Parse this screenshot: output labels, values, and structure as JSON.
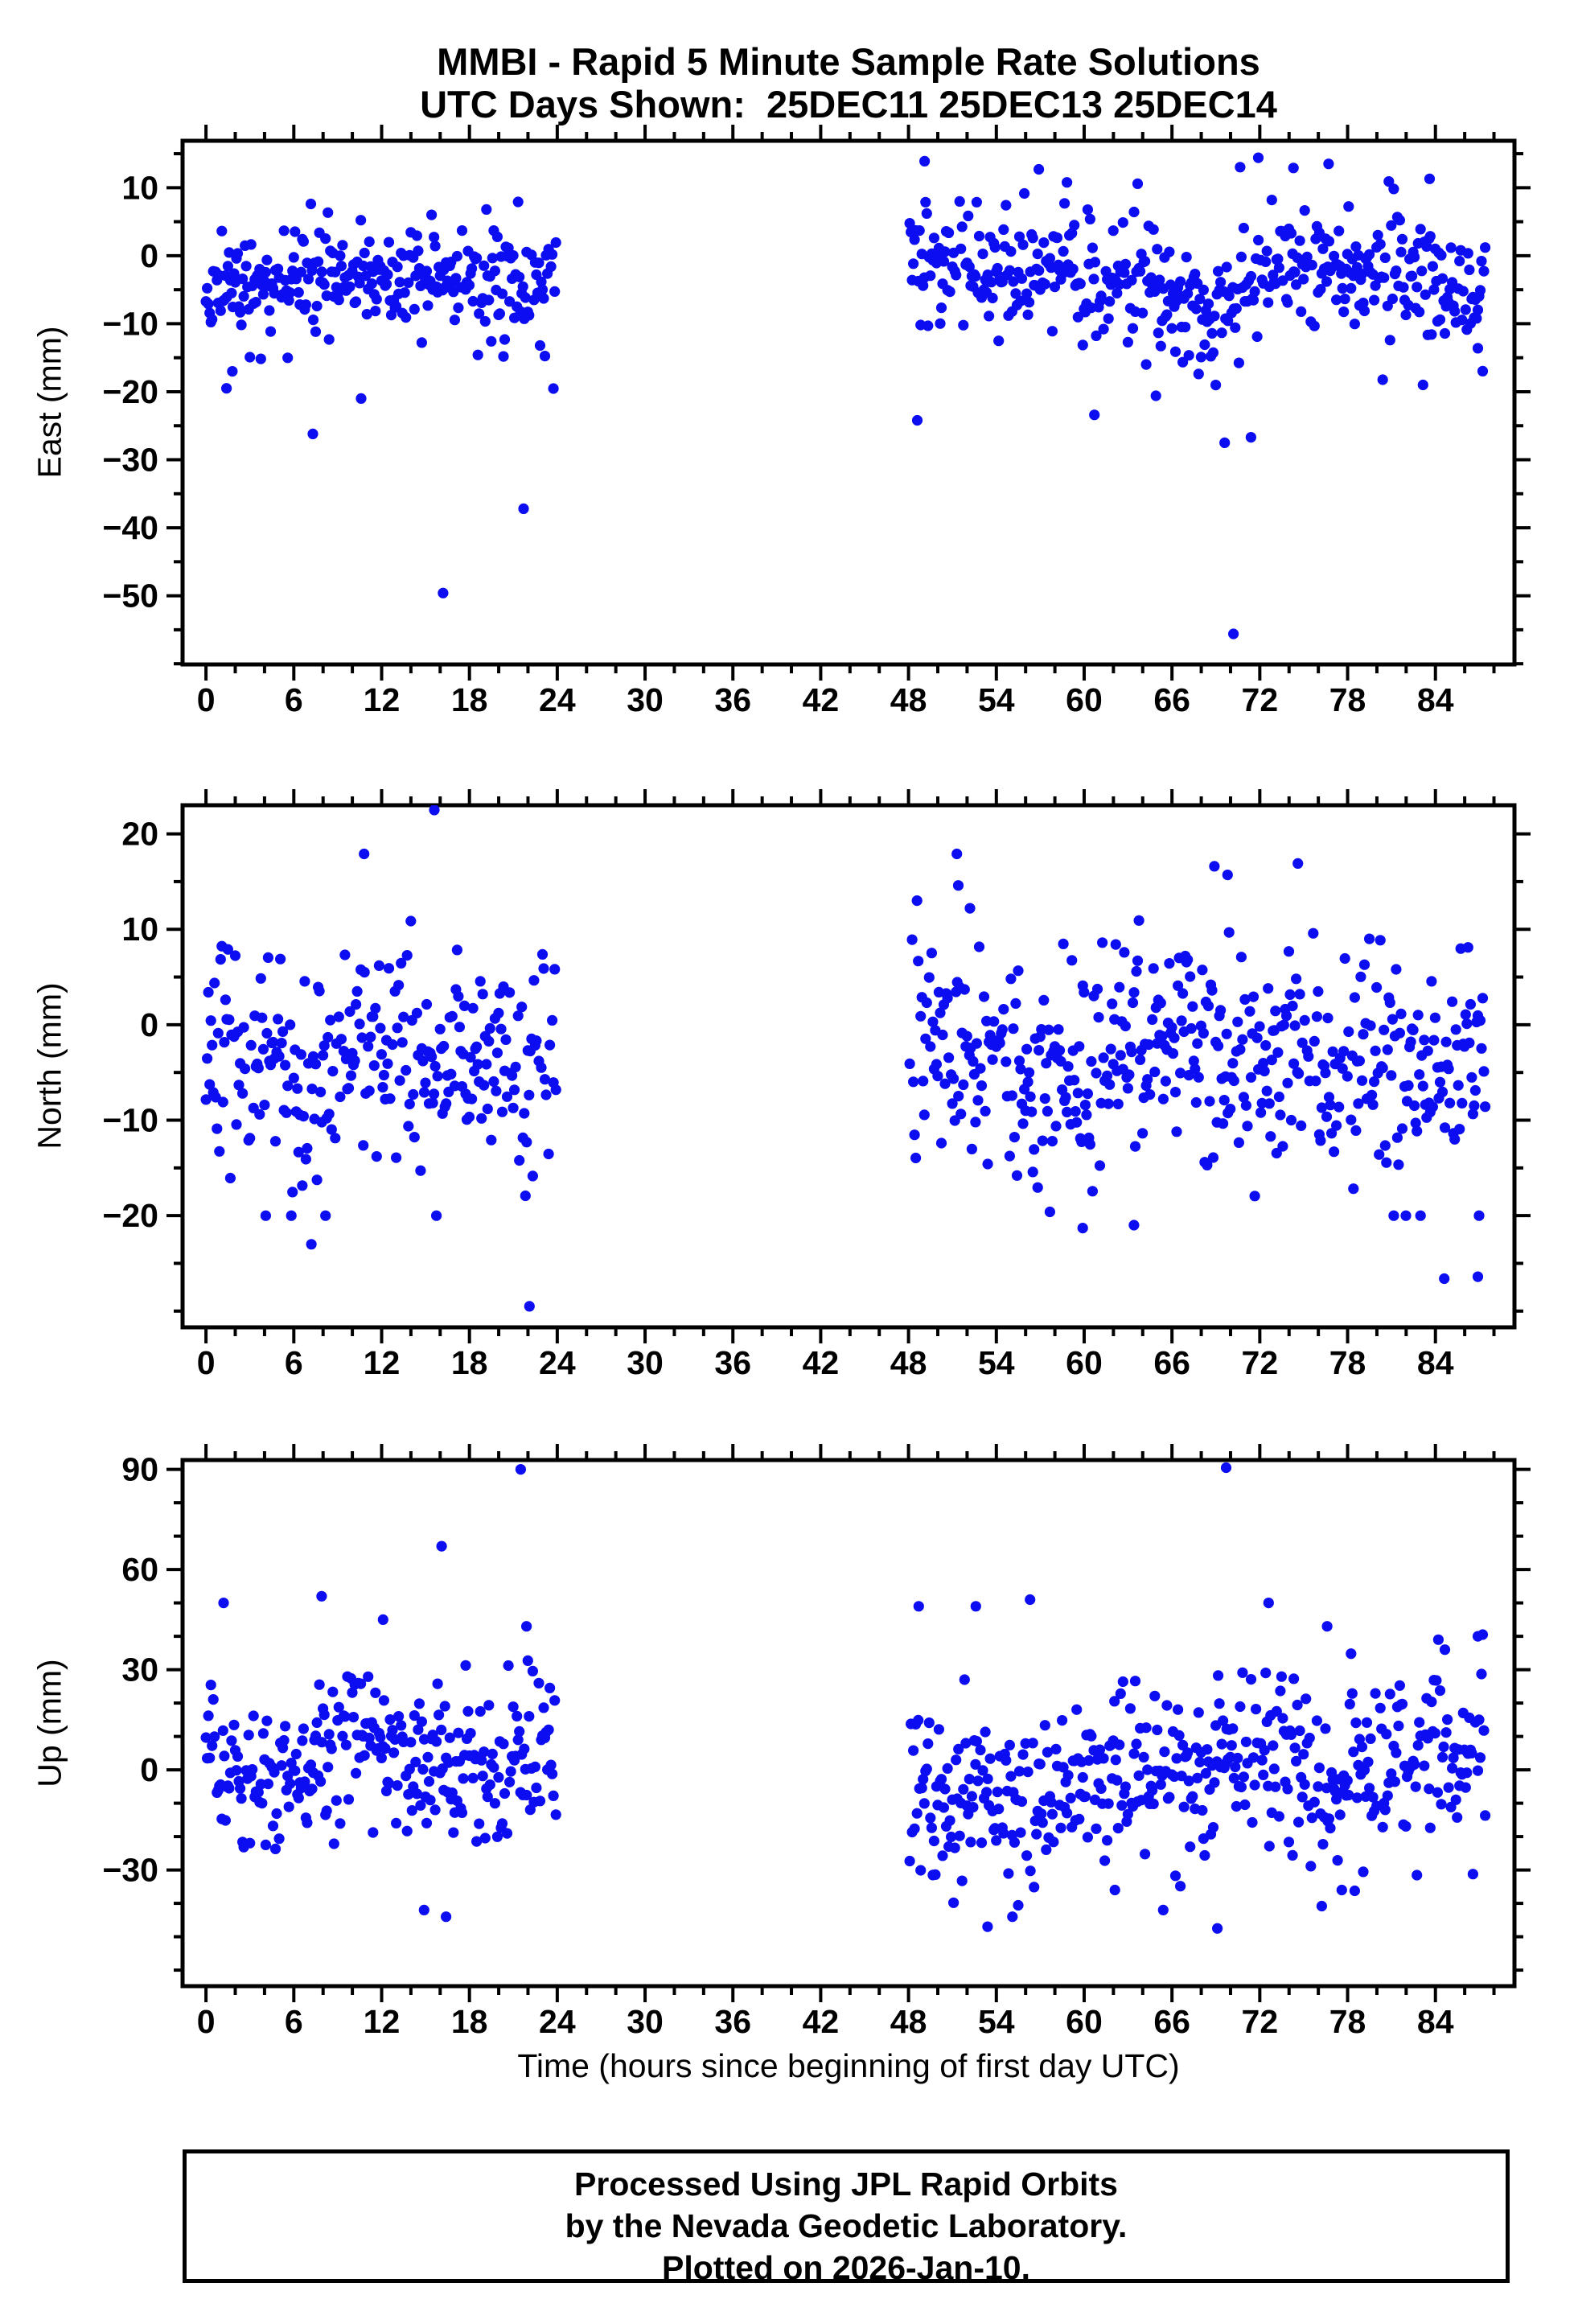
{
  "title": {
    "line1": "MMBI - Rapid 5 Minute Sample Rate Solutions",
    "line2": "UTC Days Shown:  25DEC11 25DEC13 25DEC14"
  },
  "footer": {
    "lines": [
      "Processed Using JPL Rapid Orbits",
      "by the Nevada Geodetic Laboratory.",
      "Plotted on 2026-Jan-10."
    ]
  },
  "xaxis": {
    "label": "Time (hours since beginning of first day UTC)",
    "lim": [
      -1.6,
      89.4
    ],
    "major_ticks": [
      0,
      6,
      12,
      18,
      24,
      30,
      36,
      42,
      48,
      54,
      60,
      66,
      72,
      78,
      84
    ],
    "minor_step": 2
  },
  "style": {
    "point_color": "#0d0df2",
    "point_radius": 6.6,
    "axis_color": "#000000",
    "border_width": 5,
    "tick_width": 4,
    "tick_major_len": 20,
    "tick_minor_len": 11
  },
  "chart_data": [
    {
      "type": "scatter",
      "component": "East",
      "ylabel": "East (mm)",
      "ylim": [
        -60.1,
        16.9
      ],
      "yticks": [
        10,
        0,
        -10,
        -20,
        -30,
        -40,
        -50
      ],
      "y_minor_step": 5,
      "seed": 11,
      "sample_step_minutes": 5,
      "segments": [
        {
          "t0": 0.0,
          "t1": 23.95,
          "step_h": 0.0833,
          "drop": 0.06,
          "std": 3.9,
          "mean_pts": [
            [
              0,
              -3
            ],
            [
              2,
              -4
            ],
            [
              5,
              -2.5
            ],
            [
              9,
              -3.5
            ],
            [
              13,
              -2.5
            ],
            [
              17,
              -3.5
            ],
            [
              21,
              -3
            ],
            [
              24,
              -3.5
            ]
          ],
          "p_low": 0.05,
          "low_base": 4,
          "low_span": 10,
          "p_high": 0.015,
          "high_base": 3,
          "high_span": 5,
          "clamp": [
            -21,
            14.5
          ]
        },
        {
          "t0": 48.08,
          "t1": 87.4,
          "step_h": 0.0833,
          "drop": 0.06,
          "std": 4.3,
          "mean_pts": [
            [
              48,
              -1.5
            ],
            [
              51,
              -1
            ],
            [
              54,
              -2
            ],
            [
              57,
              -1
            ],
            [
              60,
              -3.5
            ],
            [
              63,
              -3
            ],
            [
              66,
              -5
            ],
            [
              68.5,
              -8.5
            ],
            [
              70,
              -9
            ],
            [
              71.5,
              -4
            ],
            [
              73,
              -1.5
            ],
            [
              75,
              -0.5
            ],
            [
              77,
              -1.5
            ],
            [
              79,
              -3
            ],
            [
              81,
              -2
            ],
            [
              83,
              -3.5
            ],
            [
              85,
              -4.5
            ],
            [
              87.4,
              -5
            ]
          ],
          "p_low": 0.045,
          "low_base": 4,
          "low_span": 9,
          "p_high": 0.02,
          "high_base": 3,
          "high_span": 6,
          "clamp": [
            -21,
            15
          ]
        }
      ],
      "outliers": [
        [
          1.4,
          -19.5
        ],
        [
          1.8,
          -17
        ],
        [
          7.3,
          -26.2
        ],
        [
          10.6,
          -21
        ],
        [
          16.2,
          -49.6
        ],
        [
          21.7,
          -37.2
        ],
        [
          48.6,
          -24.2
        ],
        [
          60.7,
          -23.4
        ],
        [
          64.9,
          -20.6
        ],
        [
          69.6,
          -27.5
        ],
        [
          70.2,
          -55.6
        ],
        [
          71.4,
          -26.7
        ],
        [
          86.9,
          -13.6
        ],
        [
          49.1,
          13.9
        ],
        [
          56.9,
          12.7
        ],
        [
          71.9,
          14.4
        ],
        [
          74.3,
          12.9
        ],
        [
          76.7,
          13.5
        ],
        [
          83.6,
          11.3
        ]
      ]
    },
    {
      "type": "scatter",
      "component": "North",
      "ylabel": "North (mm)",
      "ylim": [
        -31.7,
        23.0
      ],
      "yticks": [
        20,
        10,
        0,
        -10,
        -20
      ],
      "y_minor_step": 5,
      "seed": 23,
      "sample_step_minutes": 5,
      "segments": [
        {
          "t0": 0.0,
          "t1": 23.95,
          "step_h": 0.0833,
          "drop": 0.06,
          "std": 4.9,
          "mean_pts": [
            [
              0,
              -1.5
            ],
            [
              2,
              -4
            ],
            [
              4,
              -6
            ],
            [
              6,
              -5
            ],
            [
              8,
              -6.5
            ],
            [
              10,
              -2
            ],
            [
              11.5,
              1
            ],
            [
              13,
              -4
            ],
            [
              15,
              -5
            ],
            [
              17,
              -3
            ],
            [
              19,
              -3.5
            ],
            [
              21,
              -4.5
            ],
            [
              23,
              -2
            ],
            [
              24,
              -1.5
            ]
          ],
          "p_low": 0.07,
          "low_base": 3,
          "low_span": 9,
          "p_high": 0.02,
          "high_base": 3,
          "high_span": 6,
          "clamp": [
            -20,
            12
          ]
        },
        {
          "t0": 48.08,
          "t1": 87.4,
          "step_h": 0.0833,
          "drop": 0.06,
          "std": 5.3,
          "mean_pts": [
            [
              48,
              -1
            ],
            [
              50,
              -2.5
            ],
            [
              52,
              -3.5
            ],
            [
              54,
              -5
            ],
            [
              56,
              -5.5
            ],
            [
              58,
              -4
            ],
            [
              60,
              -5
            ],
            [
              62,
              -4
            ],
            [
              64,
              -3
            ],
            [
              66,
              -1.5
            ],
            [
              68,
              -1
            ],
            [
              70,
              -2.5
            ],
            [
              72,
              -3
            ],
            [
              74,
              -2
            ],
            [
              76,
              -4.5
            ],
            [
              78,
              -5.5
            ],
            [
              80,
              -4.5
            ],
            [
              82,
              -5
            ],
            [
              84,
              -4
            ],
            [
              86,
              -3
            ],
            [
              87.4,
              -2.5
            ]
          ],
          "p_low": 0.06,
          "low_base": 3,
          "low_span": 9,
          "p_high": 0.035,
          "high_base": 3,
          "high_span": 8,
          "clamp": [
            -20,
            13
          ]
        }
      ],
      "outliers": [
        [
          10.8,
          17.9
        ],
        [
          15.6,
          22.5
        ],
        [
          7.2,
          -23
        ],
        [
          22.1,
          -29.5
        ],
        [
          51.3,
          17.9
        ],
        [
          51.4,
          14.6
        ],
        [
          52.2,
          12.2
        ],
        [
          59.9,
          -21.3
        ],
        [
          63.4,
          -21
        ],
        [
          68.9,
          16.6
        ],
        [
          69.8,
          15.7
        ],
        [
          74.6,
          16.9
        ],
        [
          84.6,
          -26.6
        ],
        [
          86.9,
          -26.4
        ]
      ]
    },
    {
      "type": "scatter",
      "component": "Up",
      "ylabel": "Up (mm)",
      "ylim": [
        -64.8,
        92.8
      ],
      "yticks": [
        90,
        60,
        30,
        0,
        -30
      ],
      "y_minor_step": 10,
      "seed": 37,
      "sample_step_minutes": 5,
      "segments": [
        {
          "t0": 0.0,
          "t1": 23.95,
          "step_h": 0.0833,
          "drop": 0.06,
          "std": 11.5,
          "mean_pts": [
            [
              0,
              10
            ],
            [
              1.5,
              4
            ],
            [
              3,
              -2
            ],
            [
              5,
              -5
            ],
            [
              7,
              0
            ],
            [
              9,
              6
            ],
            [
              10.5,
              9
            ],
            [
              12,
              3
            ],
            [
              14,
              -4
            ],
            [
              15.5,
              2
            ],
            [
              17,
              6
            ],
            [
              18.5,
              -1
            ],
            [
              20,
              4
            ],
            [
              21.5,
              7
            ],
            [
              23,
              2
            ],
            [
              24,
              4
            ]
          ],
          "p_low": 0.05,
          "low_base": 6,
          "low_span": 13,
          "p_high": 0.04,
          "high_base": 6,
          "high_span": 12,
          "clamp": [
            -44,
            46
          ]
        },
        {
          "t0": 48.08,
          "t1": 87.4,
          "step_h": 0.0833,
          "drop": 0.06,
          "std": 12.5,
          "mean_pts": [
            [
              48,
              -2
            ],
            [
              50,
              -6
            ],
            [
              52,
              -8
            ],
            [
              54,
              -6
            ],
            [
              56,
              -3
            ],
            [
              58,
              -6
            ],
            [
              60,
              2
            ],
            [
              62,
              5
            ],
            [
              64,
              -1
            ],
            [
              66,
              -4
            ],
            [
              68,
              1
            ],
            [
              70,
              5
            ],
            [
              72,
              6
            ],
            [
              74,
              2
            ],
            [
              76,
              -3
            ],
            [
              78,
              -5
            ],
            [
              80,
              -1
            ],
            [
              82,
              3
            ],
            [
              84,
              5
            ],
            [
              86,
              7
            ],
            [
              87.4,
              9
            ]
          ],
          "p_low": 0.05,
          "low_base": 6,
          "low_span": 13,
          "p_high": 0.04,
          "high_base": 6,
          "high_span": 12,
          "clamp": [
            -45,
            47
          ]
        }
      ],
      "outliers": [
        [
          1.2,
          50
        ],
        [
          7.9,
          52
        ],
        [
          12.1,
          45
        ],
        [
          16.1,
          67
        ],
        [
          21.5,
          90
        ],
        [
          21.9,
          43
        ],
        [
          16.4,
          -44
        ],
        [
          14.9,
          -42
        ],
        [
          48.7,
          49
        ],
        [
          52.6,
          49
        ],
        [
          56.3,
          51
        ],
        [
          69.7,
          90.5
        ],
        [
          72.6,
          50
        ],
        [
          76.6,
          43
        ],
        [
          84.2,
          39
        ],
        [
          86.9,
          40
        ],
        [
          53.4,
          -47
        ],
        [
          55.1,
          -44
        ],
        [
          65.4,
          -42
        ],
        [
          69.1,
          -47.5
        ],
        [
          62.1,
          -36
        ],
        [
          77.6,
          -36
        ]
      ]
    }
  ]
}
